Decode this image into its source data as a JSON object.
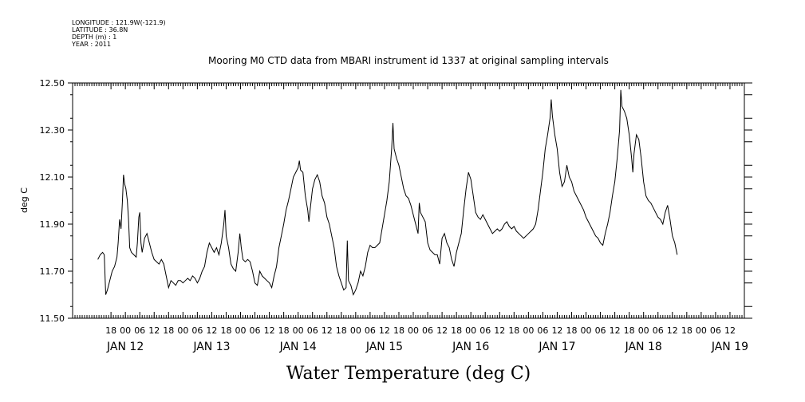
{
  "header": {
    "lines": [
      "LONGITUDE : 121.9W(-121.9)",
      "LATITUDE : 36.8N",
      "DEPTH (m) : 1",
      "YEAR : 2011"
    ]
  },
  "chart_data": {
    "type": "line",
    "title": "Mooring M0 CTD data from MBARI instrument id 1337 at original sampling intervals",
    "xlabel": "Water Temperature (deg C)",
    "ylabel": "deg C",
    "ylim": [
      11.5,
      12.5
    ],
    "yticks": [
      11.5,
      11.7,
      11.9,
      12.1,
      12.3,
      12.5
    ],
    "ytick_labels": [
      "11.50",
      "11.70",
      "11.90",
      "12.10",
      "12.30",
      "12.50"
    ],
    "xlim_hours": [
      -10,
      270
    ],
    "hour_ticks": [
      {
        "h": 6,
        "label": "18"
      },
      {
        "h": 12,
        "label": "00"
      },
      {
        "h": 18,
        "label": "06"
      },
      {
        "h": 24,
        "label": "12"
      },
      {
        "h": 30,
        "label": "18"
      },
      {
        "h": 36,
        "label": "00"
      },
      {
        "h": 42,
        "label": "06"
      },
      {
        "h": 48,
        "label": "12"
      },
      {
        "h": 54,
        "label": "18"
      },
      {
        "h": 60,
        "label": "00"
      },
      {
        "h": 66,
        "label": "06"
      },
      {
        "h": 72,
        "label": "12"
      },
      {
        "h": 78,
        "label": "18"
      },
      {
        "h": 84,
        "label": "00"
      },
      {
        "h": 90,
        "label": "06"
      },
      {
        "h": 96,
        "label": "12"
      },
      {
        "h": 102,
        "label": "18"
      },
      {
        "h": 108,
        "label": "00"
      },
      {
        "h": 114,
        "label": "06"
      },
      {
        "h": 120,
        "label": "12"
      },
      {
        "h": 126,
        "label": "18"
      },
      {
        "h": 132,
        "label": "00"
      },
      {
        "h": 138,
        "label": "06"
      },
      {
        "h": 144,
        "label": "12"
      },
      {
        "h": 150,
        "label": "18"
      },
      {
        "h": 156,
        "label": "00"
      },
      {
        "h": 162,
        "label": "06"
      },
      {
        "h": 168,
        "label": "12"
      },
      {
        "h": 174,
        "label": "18"
      },
      {
        "h": 180,
        "label": "00"
      },
      {
        "h": 186,
        "label": "06"
      },
      {
        "h": 192,
        "label": "12"
      },
      {
        "h": 198,
        "label": "18"
      },
      {
        "h": 204,
        "label": "00"
      },
      {
        "h": 210,
        "label": "06"
      },
      {
        "h": 216,
        "label": "12"
      },
      {
        "h": 222,
        "label": "18"
      },
      {
        "h": 228,
        "label": "00"
      },
      {
        "h": 234,
        "label": "06"
      },
      {
        "h": 240,
        "label": "12"
      },
      {
        "h": 246,
        "label": "18"
      },
      {
        "h": 252,
        "label": "00"
      },
      {
        "h": 258,
        "label": "06"
      },
      {
        "h": 264,
        "label": "12"
      }
    ],
    "day_labels": [
      {
        "h": 0,
        "label": "JAN 12"
      },
      {
        "h": 24,
        "label": "JAN 13"
      },
      {
        "h": 48,
        "label": "JAN 14"
      },
      {
        "h": 72,
        "label": "JAN 15"
      },
      {
        "h": 96,
        "label": "JAN 16"
      },
      {
        "h": 120,
        "label": "JAN 17"
      },
      {
        "h": 144,
        "label": "JAN 18"
      },
      {
        "h": 168,
        "label": "JAN 19"
      }
    ],
    "series": [
      {
        "color": "#000000",
        "points": [
          [
            0.5,
            11.75
          ],
          [
            1.5,
            11.77
          ],
          [
            2.5,
            11.78
          ],
          [
            3.2,
            11.77
          ],
          [
            3.8,
            11.6
          ],
          [
            4.5,
            11.62
          ],
          [
            5.5,
            11.66
          ],
          [
            6.5,
            11.7
          ],
          [
            7.5,
            11.72
          ],
          [
            8.5,
            11.76
          ],
          [
            9.0,
            11.82
          ],
          [
            9.6,
            11.92
          ],
          [
            10.2,
            11.88
          ],
          [
            10.8,
            12.0
          ],
          [
            11.2,
            12.11
          ],
          [
            11.7,
            12.07
          ],
          [
            12.2,
            12.05
          ],
          [
            12.8,
            12.0
          ],
          [
            13.3,
            11.92
          ],
          [
            13.8,
            11.8
          ],
          [
            14.5,
            11.78
          ],
          [
            15.5,
            11.77
          ],
          [
            16.5,
            11.76
          ],
          [
            17.0,
            11.82
          ],
          [
            17.6,
            11.93
          ],
          [
            18.0,
            11.95
          ],
          [
            18.5,
            11.82
          ],
          [
            19.0,
            11.78
          ],
          [
            20.0,
            11.84
          ],
          [
            21.0,
            11.86
          ],
          [
            22.0,
            11.82
          ],
          [
            23.0,
            11.78
          ],
          [
            24.0,
            11.75
          ],
          [
            25.0,
            11.74
          ],
          [
            26.0,
            11.73
          ],
          [
            27.0,
            11.75
          ],
          [
            28.0,
            11.73
          ],
          [
            29.0,
            11.68
          ],
          [
            30.0,
            11.63
          ],
          [
            31.0,
            11.66
          ],
          [
            32.0,
            11.65
          ],
          [
            33.0,
            11.64
          ],
          [
            34.0,
            11.66
          ],
          [
            35.0,
            11.66
          ],
          [
            36.0,
            11.65
          ],
          [
            37.0,
            11.66
          ],
          [
            38.0,
            11.67
          ],
          [
            39.0,
            11.66
          ],
          [
            40.0,
            11.68
          ],
          [
            41.0,
            11.67
          ],
          [
            42.0,
            11.65
          ],
          [
            43.0,
            11.67
          ],
          [
            44.0,
            11.7
          ],
          [
            45.0,
            11.72
          ],
          [
            46.0,
            11.78
          ],
          [
            47.0,
            11.82
          ],
          [
            48.0,
            11.8
          ],
          [
            49.0,
            11.78
          ],
          [
            50.0,
            11.8
          ],
          [
            51.0,
            11.77
          ],
          [
            52.0,
            11.82
          ],
          [
            53.0,
            11.9
          ],
          [
            53.5,
            11.96
          ],
          [
            54.0,
            11.85
          ],
          [
            55.0,
            11.8
          ],
          [
            56.0,
            11.73
          ],
          [
            57.0,
            11.71
          ],
          [
            58.0,
            11.7
          ],
          [
            59.0,
            11.78
          ],
          [
            59.7,
            11.86
          ],
          [
            60.3,
            11.8
          ],
          [
            61.0,
            11.75
          ],
          [
            62.0,
            11.74
          ],
          [
            63.0,
            11.75
          ],
          [
            64.0,
            11.74
          ],
          [
            65.0,
            11.7
          ],
          [
            66.0,
            11.65
          ],
          [
            67.0,
            11.64
          ],
          [
            68.0,
            11.7
          ],
          [
            69.0,
            11.68
          ],
          [
            70.0,
            11.67
          ],
          [
            71.0,
            11.66
          ],
          [
            72.0,
            11.65
          ],
          [
            73.0,
            11.63
          ],
          [
            74.0,
            11.68
          ],
          [
            75.0,
            11.72
          ],
          [
            76.0,
            11.8
          ],
          [
            77.0,
            11.85
          ],
          [
            78.0,
            11.9
          ],
          [
            79.0,
            11.96
          ],
          [
            80.0,
            12.0
          ],
          [
            81.0,
            12.05
          ],
          [
            82.0,
            12.1
          ],
          [
            83.0,
            12.12
          ],
          [
            84.0,
            12.14
          ],
          [
            84.5,
            12.17
          ],
          [
            85.0,
            12.13
          ],
          [
            86.0,
            12.12
          ],
          [
            87.0,
            12.02
          ],
          [
            88.0,
            11.96
          ],
          [
            88.5,
            11.91
          ],
          [
            89.0,
            11.96
          ],
          [
            90.0,
            12.05
          ],
          [
            91.0,
            12.09
          ],
          [
            92.0,
            12.11
          ],
          [
            93.0,
            12.08
          ],
          [
            94.0,
            12.02
          ],
          [
            95.0,
            11.99
          ],
          [
            96.0,
            11.93
          ],
          [
            97.0,
            11.9
          ],
          [
            98.0,
            11.85
          ],
          [
            99.0,
            11.8
          ],
          [
            100.0,
            11.72
          ],
          [
            101.0,
            11.68
          ],
          [
            102.0,
            11.65
          ],
          [
            103.0,
            11.62
          ],
          [
            104.0,
            11.63
          ],
          [
            104.5,
            11.83
          ],
          [
            105.0,
            11.66
          ],
          [
            106.0,
            11.64
          ],
          [
            107.0,
            11.6
          ],
          [
            108.0,
            11.62
          ],
          [
            109.0,
            11.65
          ],
          [
            110.0,
            11.7
          ],
          [
            111.0,
            11.68
          ],
          [
            112.0,
            11.72
          ],
          [
            113.0,
            11.78
          ],
          [
            114.0,
            11.81
          ],
          [
            115.0,
            11.8
          ],
          [
            116.0,
            11.8
          ],
          [
            117.0,
            11.81
          ],
          [
            118.0,
            11.82
          ],
          [
            119.0,
            11.88
          ],
          [
            120.0,
            11.94
          ],
          [
            121.0,
            12.0
          ],
          [
            122.0,
            12.08
          ],
          [
            123.0,
            12.22
          ],
          [
            123.5,
            12.33
          ],
          [
            124.0,
            12.22
          ],
          [
            125.0,
            12.18
          ],
          [
            126.0,
            12.15
          ],
          [
            127.0,
            12.1
          ],
          [
            128.0,
            12.05
          ],
          [
            129.0,
            12.02
          ],
          [
            130.0,
            12.01
          ],
          [
            131.0,
            11.98
          ],
          [
            132.0,
            11.94
          ],
          [
            133.0,
            11.9
          ],
          [
            134.0,
            11.86
          ],
          [
            134.5,
            11.99
          ],
          [
            135.0,
            11.95
          ],
          [
            136.0,
            11.93
          ],
          [
            137.0,
            11.91
          ],
          [
            138.0,
            11.82
          ],
          [
            139.0,
            11.79
          ],
          [
            140.0,
            11.78
          ],
          [
            141.0,
            11.77
          ],
          [
            142.0,
            11.77
          ],
          [
            143.0,
            11.73
          ],
          [
            144.0,
            11.84
          ],
          [
            145.0,
            11.86
          ],
          [
            146.0,
            11.82
          ],
          [
            147.0,
            11.8
          ],
          [
            148.0,
            11.75
          ],
          [
            149.0,
            11.72
          ],
          [
            150.0,
            11.78
          ],
          [
            151.0,
            11.82
          ],
          [
            152.0,
            11.86
          ],
          [
            153.0,
            11.96
          ],
          [
            154.0,
            12.05
          ],
          [
            155.0,
            12.12
          ],
          [
            156.0,
            12.09
          ],
          [
            157.0,
            12.02
          ],
          [
            158.0,
            11.95
          ],
          [
            159.0,
            11.93
          ],
          [
            160.0,
            11.92
          ],
          [
            161.0,
            11.94
          ],
          [
            162.0,
            11.92
          ],
          [
            163.0,
            11.9
          ],
          [
            164.0,
            11.88
          ],
          [
            165.0,
            11.86
          ],
          [
            166.0,
            11.87
          ],
          [
            167.0,
            11.88
          ],
          [
            168.0,
            11.87
          ],
          [
            169.0,
            11.88
          ],
          [
            170.0,
            11.9
          ],
          [
            171.0,
            11.91
          ],
          [
            172.0,
            11.89
          ],
          [
            173.0,
            11.88
          ],
          [
            174.0,
            11.89
          ],
          [
            175.0,
            11.87
          ],
          [
            176.0,
            11.86
          ],
          [
            177.0,
            11.85
          ],
          [
            178.0,
            11.84
          ],
          [
            179.0,
            11.85
          ],
          [
            180.0,
            11.86
          ],
          [
            181.0,
            11.87
          ],
          [
            182.0,
            11.88
          ],
          [
            183.0,
            11.9
          ],
          [
            184.0,
            11.96
          ],
          [
            185.0,
            12.04
          ],
          [
            186.0,
            12.12
          ],
          [
            187.0,
            12.22
          ],
          [
            188.0,
            12.28
          ],
          [
            189.0,
            12.35
          ],
          [
            189.5,
            12.43
          ],
          [
            190.0,
            12.36
          ],
          [
            191.0,
            12.28
          ],
          [
            192.0,
            12.22
          ],
          [
            193.0,
            12.12
          ],
          [
            194.0,
            12.06
          ],
          [
            195.0,
            12.08
          ],
          [
            196.0,
            12.15
          ],
          [
            197.0,
            12.1
          ],
          [
            198.0,
            12.08
          ],
          [
            199.0,
            12.04
          ],
          [
            200.0,
            12.02
          ],
          [
            201.0,
            12.0
          ],
          [
            202.0,
            11.98
          ],
          [
            203.0,
            11.96
          ],
          [
            204.0,
            11.93
          ],
          [
            205.0,
            11.91
          ],
          [
            206.0,
            11.89
          ],
          [
            207.0,
            11.87
          ],
          [
            208.0,
            11.85
          ],
          [
            209.0,
            11.84
          ],
          [
            210.0,
            11.82
          ],
          [
            211.0,
            11.81
          ],
          [
            212.0,
            11.86
          ],
          [
            213.0,
            11.9
          ],
          [
            214.0,
            11.95
          ],
          [
            215.0,
            12.02
          ],
          [
            216.0,
            12.08
          ],
          [
            217.0,
            12.18
          ],
          [
            218.0,
            12.3
          ],
          [
            218.5,
            12.47
          ],
          [
            219.0,
            12.4
          ],
          [
            220.0,
            12.38
          ],
          [
            221.0,
            12.35
          ],
          [
            222.0,
            12.28
          ],
          [
            223.0,
            12.18
          ],
          [
            223.5,
            12.12
          ],
          [
            224.0,
            12.2
          ],
          [
            225.0,
            12.28
          ],
          [
            226.0,
            12.26
          ],
          [
            227.0,
            12.18
          ],
          [
            228.0,
            12.08
          ],
          [
            229.0,
            12.02
          ],
          [
            230.0,
            12.0
          ],
          [
            231.0,
            11.99
          ],
          [
            232.0,
            11.97
          ],
          [
            233.0,
            11.95
          ],
          [
            234.0,
            11.93
          ],
          [
            235.0,
            11.92
          ],
          [
            236.0,
            11.9
          ],
          [
            237.0,
            11.95
          ],
          [
            238.0,
            11.98
          ],
          [
            239.0,
            11.92
          ],
          [
            240.0,
            11.85
          ],
          [
            241.0,
            11.82
          ],
          [
            242.0,
            11.77
          ]
        ]
      }
    ]
  }
}
